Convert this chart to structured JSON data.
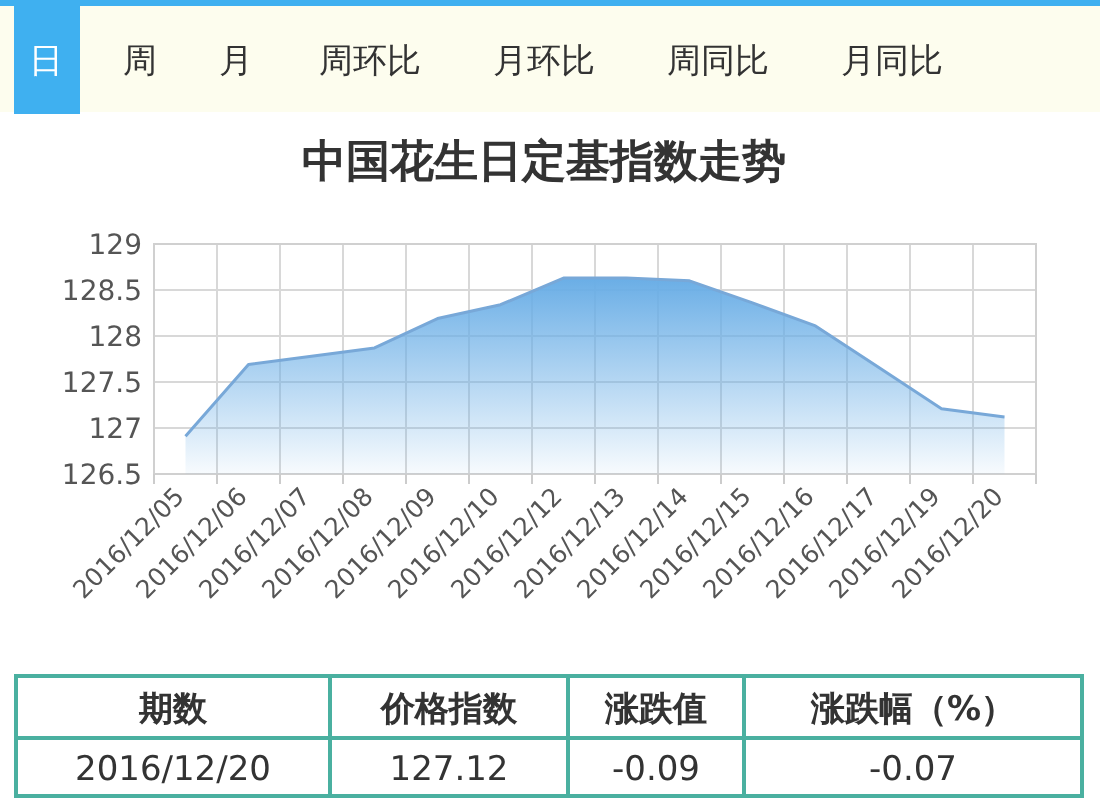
{
  "chart_data": {
    "type": "area",
    "title": "中国花生日定基指数走势",
    "categories": [
      "2016/12/05",
      "2016/12/06",
      "2016/12/07",
      "2016/12/08",
      "2016/12/09",
      "2016/12/10",
      "2016/12/12",
      "2016/12/13",
      "2016/12/14",
      "2016/12/15",
      "2016/12/16",
      "2016/12/17",
      "2016/12/19",
      "2016/12/20"
    ],
    "values": [
      126.91,
      127.69,
      127.78,
      127.87,
      128.19,
      128.34,
      128.63,
      128.63,
      128.6,
      128.36,
      128.11,
      127.66,
      127.21,
      127.12
    ],
    "color": "#6aaee6",
    "ylim": [
      126.5,
      129
    ],
    "yticks": [
      126.5,
      127,
      127.5,
      128,
      128.5,
      129
    ],
    "grid": true,
    "annotations": [
      "日",
      "周",
      "月",
      "周环比",
      "月环比",
      "周同比",
      "月同比",
      "期数",
      "价格指数",
      "涨跌值",
      "涨跌幅（%）",
      "2016/12/20",
      "127.12",
      "-0.09",
      "-0.07"
    ]
  }
}
